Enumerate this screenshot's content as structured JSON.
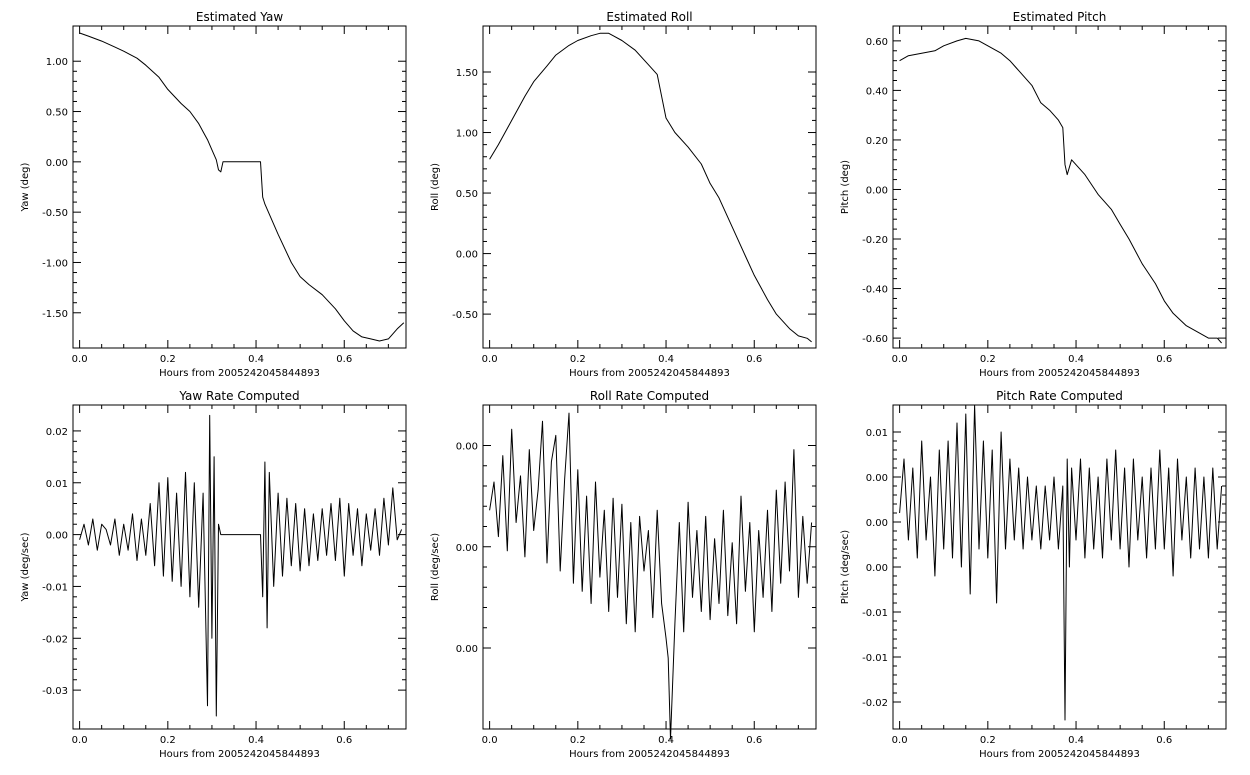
{
  "chart_data": [
    {
      "type": "line",
      "title": "Estimated Yaw",
      "xlabel": "Hours from 2005242045844893",
      "ylabel": "Yaw (deg)",
      "xlim": [
        -0.015,
        0.74
      ],
      "ylim": [
        -1.85,
        1.35
      ],
      "xticks": [
        "0.0",
        "0.2",
        "0.4",
        "0.6"
      ],
      "yticks": [
        "1.00",
        "0.50",
        "0.00",
        "-0.50",
        "-1.00",
        "-1.50"
      ],
      "x": [
        0,
        0.02,
        0.05,
        0.08,
        0.1,
        0.13,
        0.15,
        0.18,
        0.2,
        0.23,
        0.25,
        0.27,
        0.28,
        0.29,
        0.3,
        0.31,
        0.315,
        0.32,
        0.325,
        0.33,
        0.35,
        0.38,
        0.4,
        0.41,
        0.415,
        0.42,
        0.45,
        0.48,
        0.5,
        0.52,
        0.55,
        0.58,
        0.6,
        0.62,
        0.64,
        0.66,
        0.68,
        0.7,
        0.72,
        0.735
      ],
      "y": [
        1.28,
        1.25,
        1.2,
        1.14,
        1.1,
        1.03,
        0.96,
        0.84,
        0.72,
        0.58,
        0.5,
        0.38,
        0.3,
        0.22,
        0.12,
        0.02,
        -0.08,
        -0.1,
        0.0,
        0.0,
        0.0,
        0.0,
        0.0,
        0.0,
        -0.35,
        -0.42,
        -0.72,
        -1.0,
        -1.14,
        -1.22,
        -1.32,
        -1.46,
        -1.58,
        -1.68,
        -1.74,
        -1.76,
        -1.78,
        -1.76,
        -1.66,
        -1.6
      ]
    },
    {
      "type": "line",
      "title": "Estimated Roll",
      "xlabel": "Hours from 2005242045844893",
      "ylabel": "Roll (deg)",
      "xlim": [
        -0.015,
        0.74
      ],
      "ylim": [
        -0.78,
        1.88
      ],
      "xticks": [
        "0.0",
        "0.2",
        "0.4",
        "0.6"
      ],
      "yticks": [
        "1.50",
        "1.00",
        "0.50",
        "0.00",
        "-0.50"
      ],
      "x": [
        0,
        0.02,
        0.05,
        0.08,
        0.1,
        0.13,
        0.15,
        0.18,
        0.2,
        0.23,
        0.25,
        0.27,
        0.28,
        0.3,
        0.33,
        0.36,
        0.38,
        0.39,
        0.4,
        0.42,
        0.45,
        0.48,
        0.5,
        0.52,
        0.55,
        0.58,
        0.6,
        0.63,
        0.65,
        0.68,
        0.7,
        0.72,
        0.73
      ],
      "y": [
        0.78,
        0.9,
        1.1,
        1.3,
        1.42,
        1.55,
        1.64,
        1.72,
        1.76,
        1.8,
        1.82,
        1.82,
        1.8,
        1.76,
        1.68,
        1.56,
        1.48,
        1.3,
        1.12,
        1.0,
        0.88,
        0.74,
        0.58,
        0.46,
        0.22,
        -0.02,
        -0.18,
        -0.38,
        -0.5,
        -0.62,
        -0.68,
        -0.7,
        -0.73
      ]
    },
    {
      "type": "line",
      "title": "Estimated Pitch",
      "xlabel": "Hours from 2005242045844893",
      "ylabel": "Pitch (deg)",
      "xlim": [
        -0.015,
        0.74
      ],
      "ylim": [
        -0.64,
        0.66
      ],
      "xticks": [
        "0.0",
        "0.2",
        "0.4",
        "0.6"
      ],
      "yticks": [
        "0.60",
        "0.40",
        "0.20",
        "0.00",
        "-0.20",
        "-0.40",
        "-0.60"
      ],
      "x": [
        0,
        0.02,
        0.05,
        0.08,
        0.1,
        0.13,
        0.15,
        0.18,
        0.2,
        0.23,
        0.25,
        0.27,
        0.3,
        0.32,
        0.34,
        0.36,
        0.37,
        0.375,
        0.38,
        0.39,
        0.4,
        0.42,
        0.45,
        0.48,
        0.5,
        0.52,
        0.55,
        0.58,
        0.6,
        0.62,
        0.65,
        0.68,
        0.7,
        0.72,
        0.73
      ],
      "y": [
        0.52,
        0.54,
        0.55,
        0.56,
        0.58,
        0.6,
        0.61,
        0.6,
        0.58,
        0.55,
        0.52,
        0.48,
        0.42,
        0.35,
        0.32,
        0.28,
        0.25,
        0.1,
        0.06,
        0.12,
        0.1,
        0.06,
        -0.02,
        -0.08,
        -0.14,
        -0.2,
        -0.3,
        -0.38,
        -0.45,
        -0.5,
        -0.55,
        -0.58,
        -0.6,
        -0.6,
        -0.62
      ]
    },
    {
      "type": "line",
      "title": "Yaw Rate Computed",
      "xlabel": "Hours from 2005242045844893",
      "ylabel": "Yaw (deg/sec)",
      "xlim": [
        -0.015,
        0.74
      ],
      "ylim": [
        -0.0375,
        0.025
      ],
      "xticks": [
        "0.0",
        "0.2",
        "0.4",
        "0.6"
      ],
      "yticks": [
        "0.02",
        "0.01",
        "0.00",
        "-0.01",
        "-0.02",
        "-0.03"
      ],
      "x": [
        0,
        0.01,
        0.02,
        0.03,
        0.04,
        0.05,
        0.06,
        0.07,
        0.08,
        0.09,
        0.1,
        0.11,
        0.12,
        0.13,
        0.14,
        0.15,
        0.16,
        0.17,
        0.18,
        0.19,
        0.2,
        0.21,
        0.22,
        0.23,
        0.24,
        0.25,
        0.26,
        0.27,
        0.28,
        0.29,
        0.295,
        0.3,
        0.305,
        0.31,
        0.315,
        0.32,
        0.325,
        0.33,
        0.41,
        0.415,
        0.42,
        0.425,
        0.43,
        0.44,
        0.45,
        0.46,
        0.47,
        0.48,
        0.49,
        0.5,
        0.51,
        0.52,
        0.53,
        0.54,
        0.55,
        0.56,
        0.57,
        0.58,
        0.59,
        0.6,
        0.61,
        0.62,
        0.63,
        0.64,
        0.65,
        0.66,
        0.67,
        0.68,
        0.69,
        0.7,
        0.71,
        0.72,
        0.73
      ],
      "y": [
        -0.001,
        0.002,
        -0.002,
        0.003,
        -0.003,
        0.002,
        0.001,
        -0.002,
        0.003,
        -0.004,
        0.002,
        -0.003,
        0.004,
        -0.005,
        0.003,
        -0.004,
        0.006,
        -0.006,
        0.01,
        -0.008,
        0.011,
        -0.009,
        0.008,
        -0.01,
        0.012,
        -0.012,
        0.01,
        -0.014,
        0.008,
        -0.033,
        0.023,
        -0.02,
        0.015,
        -0.035,
        0.002,
        0.0,
        0.0,
        0.0,
        0.0,
        -0.012,
        0.014,
        -0.018,
        0.012,
        -0.01,
        0.008,
        -0.008,
        0.007,
        -0.006,
        0.006,
        -0.007,
        0.005,
        -0.006,
        0.004,
        -0.005,
        0.005,
        -0.004,
        0.006,
        -0.005,
        0.007,
        -0.008,
        0.006,
        -0.004,
        0.005,
        -0.006,
        0.004,
        -0.003,
        0.005,
        -0.004,
        0.007,
        -0.002,
        0.009,
        -0.001,
        0.001
      ]
    },
    {
      "type": "line",
      "title": "Roll Rate Computed",
      "xlabel": "Hours from 2005242045844893",
      "ylabel": "Roll (deg/sec)",
      "xlim": [
        -0.015,
        0.74
      ],
      "ylim": [
        -0.009,
        0.007
      ],
      "xticks": [
        "0.0",
        "0.2",
        "0.4",
        "0.6"
      ],
      "yticks": [
        "0.00",
        "0.00",
        "0.00"
      ],
      "x": [
        0,
        0.01,
        0.02,
        0.03,
        0.04,
        0.05,
        0.06,
        0.07,
        0.08,
        0.09,
        0.1,
        0.11,
        0.12,
        0.13,
        0.14,
        0.15,
        0.16,
        0.17,
        0.18,
        0.19,
        0.2,
        0.21,
        0.22,
        0.23,
        0.24,
        0.25,
        0.26,
        0.27,
        0.28,
        0.29,
        0.3,
        0.31,
        0.32,
        0.33,
        0.34,
        0.35,
        0.36,
        0.37,
        0.38,
        0.39,
        0.4,
        0.405,
        0.41,
        0.42,
        0.43,
        0.44,
        0.45,
        0.46,
        0.47,
        0.48,
        0.49,
        0.5,
        0.51,
        0.52,
        0.53,
        0.54,
        0.55,
        0.56,
        0.57,
        0.58,
        0.59,
        0.6,
        0.61,
        0.62,
        0.63,
        0.64,
        0.65,
        0.66,
        0.67,
        0.68,
        0.69,
        0.7,
        0.71,
        0.72,
        0.73
      ],
      "y": [
        0.0018,
        0.0032,
        0.0005,
        0.0045,
        -0.0002,
        0.0058,
        0.0012,
        0.0035,
        -0.0005,
        0.0048,
        0.0008,
        0.0028,
        0.0062,
        -0.0008,
        0.0042,
        0.0055,
        -0.0012,
        0.0033,
        0.0066,
        -0.0018,
        0.0038,
        -0.0022,
        0.0025,
        -0.0028,
        0.0032,
        -0.0015,
        0.0018,
        -0.0032,
        0.0024,
        -0.0025,
        0.0021,
        -0.0038,
        0.0012,
        -0.0042,
        0.0015,
        -0.0012,
        0.0008,
        -0.0035,
        0.0018,
        -0.0028,
        -0.0045,
        -0.0055,
        -0.0095,
        -0.0038,
        0.0012,
        -0.0042,
        0.0022,
        -0.0025,
        0.0008,
        -0.0032,
        0.0015,
        -0.0036,
        0.0004,
        -0.0028,
        0.0018,
        -0.0034,
        0.0002,
        -0.0038,
        0.0025,
        -0.0022,
        0.0012,
        -0.0042,
        0.0008,
        -0.0025,
        0.0018,
        -0.0032,
        0.0028,
        -0.0018,
        0.0032,
        -0.0012,
        0.0048,
        -0.0025,
        0.0015,
        -0.0018,
        0.0012
      ]
    },
    {
      "type": "line",
      "title": "Pitch Rate Computed",
      "xlabel": "Hours from 2005242045844893",
      "ylabel": "Pitch (deg/sec)",
      "xlim": [
        -0.015,
        0.74
      ],
      "ylim": [
        -0.023,
        0.013
      ],
      "xticks": [
        "0.0",
        "0.2",
        "0.4",
        "0.6"
      ],
      "yticks": [
        "0.01",
        "0.00",
        "0.00",
        "0.00",
        "-0.01",
        "-0.01",
        "-0.02"
      ],
      "x": [
        0,
        0.01,
        0.02,
        0.03,
        0.04,
        0.05,
        0.06,
        0.07,
        0.08,
        0.09,
        0.1,
        0.11,
        0.12,
        0.13,
        0.14,
        0.15,
        0.16,
        0.17,
        0.18,
        0.19,
        0.2,
        0.21,
        0.22,
        0.23,
        0.24,
        0.25,
        0.26,
        0.27,
        0.28,
        0.29,
        0.3,
        0.31,
        0.32,
        0.33,
        0.34,
        0.35,
        0.36,
        0.37,
        0.375,
        0.38,
        0.385,
        0.39,
        0.4,
        0.41,
        0.42,
        0.43,
        0.44,
        0.45,
        0.46,
        0.47,
        0.48,
        0.49,
        0.5,
        0.51,
        0.52,
        0.53,
        0.54,
        0.55,
        0.56,
        0.57,
        0.58,
        0.59,
        0.6,
        0.61,
        0.62,
        0.63,
        0.64,
        0.65,
        0.66,
        0.67,
        0.68,
        0.69,
        0.7,
        0.71,
        0.72,
        0.73
      ],
      "y": [
        0.001,
        0.007,
        -0.002,
        0.006,
        -0.004,
        0.009,
        -0.002,
        0.005,
        -0.006,
        0.008,
        -0.003,
        0.009,
        -0.004,
        0.011,
        -0.005,
        0.012,
        -0.008,
        0.013,
        -0.003,
        0.009,
        -0.004,
        0.008,
        -0.009,
        0.01,
        -0.003,
        0.007,
        -0.002,
        0.006,
        -0.003,
        0.005,
        -0.002,
        0.004,
        -0.003,
        0.004,
        -0.002,
        0.005,
        -0.003,
        0.004,
        -0.022,
        0.007,
        -0.005,
        0.006,
        -0.002,
        0.007,
        -0.004,
        0.006,
        -0.003,
        0.005,
        -0.004,
        0.007,
        -0.002,
        0.008,
        -0.003,
        0.006,
        -0.005,
        0.007,
        -0.002,
        0.005,
        -0.004,
        0.006,
        -0.003,
        0.008,
        -0.003,
        0.006,
        -0.006,
        0.007,
        -0.002,
        0.005,
        -0.004,
        0.006,
        -0.003,
        0.005,
        -0.004,
        0.006,
        -0.003,
        0.004
      ]
    }
  ]
}
